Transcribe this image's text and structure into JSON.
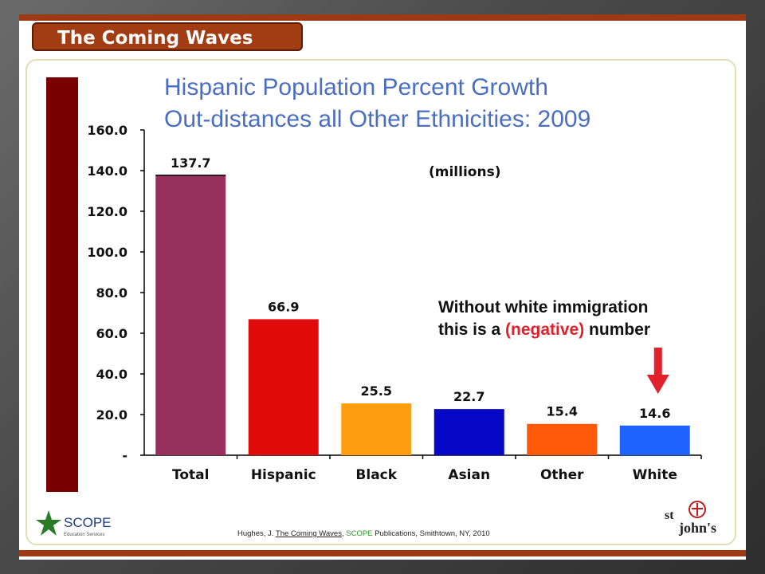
{
  "slide": {
    "title": "The Coming Waves"
  },
  "chart_data": {
    "type": "bar",
    "title_line1": "Hispanic Population Percent Growth",
    "title_line2": "Out-distances all Other Ethnicities: 2009",
    "units": "(millions)",
    "categories": [
      "Total",
      "Hispanic",
      "Black",
      "Asian",
      "Other",
      "White"
    ],
    "values": [
      137.7,
      66.9,
      25.5,
      22.7,
      15.4,
      14.6
    ],
    "value_labels": [
      "137.7",
      "66.9",
      "25.5",
      "22.7",
      "15.4",
      "14.6"
    ],
    "colors": [
      "#97305d",
      "#e00c0c",
      "#ff9f0f",
      "#0707c8",
      "#ff5a0a",
      "#1f63ff"
    ],
    "ylim": [
      0,
      160
    ],
    "yticks": [
      0,
      20,
      40,
      60,
      80,
      100,
      120,
      140,
      160
    ],
    "ytick_labels": [
      "-",
      "20.0",
      "40.0",
      "60.0",
      "80.0",
      "100.0",
      "120.0",
      "140.0",
      "160.0"
    ],
    "grid": false,
    "annotation": {
      "line1": "Without white immigration",
      "line2_prefix": "this is a ",
      "line2_highlight": "(negative)",
      "line2_suffix": " number",
      "arrow_color": "#e0202a"
    }
  },
  "footer": {
    "scope_logo_name": "SCOPE",
    "scope_logo_sub": "Education Services",
    "citation_author": "Hughes, J. ",
    "citation_book": "The Coming Waves",
    "citation_sep": ", ",
    "citation_publisher": "SCOPE",
    "citation_rest": " Publications, Smithtown, NY, 2010",
    "sj_logo_st": "st",
    "sj_logo_johns": "john's"
  },
  "colors": {
    "accent": "#a23c12",
    "title_blue": "#4a6fc2",
    "side_bar": "#7a0000"
  }
}
